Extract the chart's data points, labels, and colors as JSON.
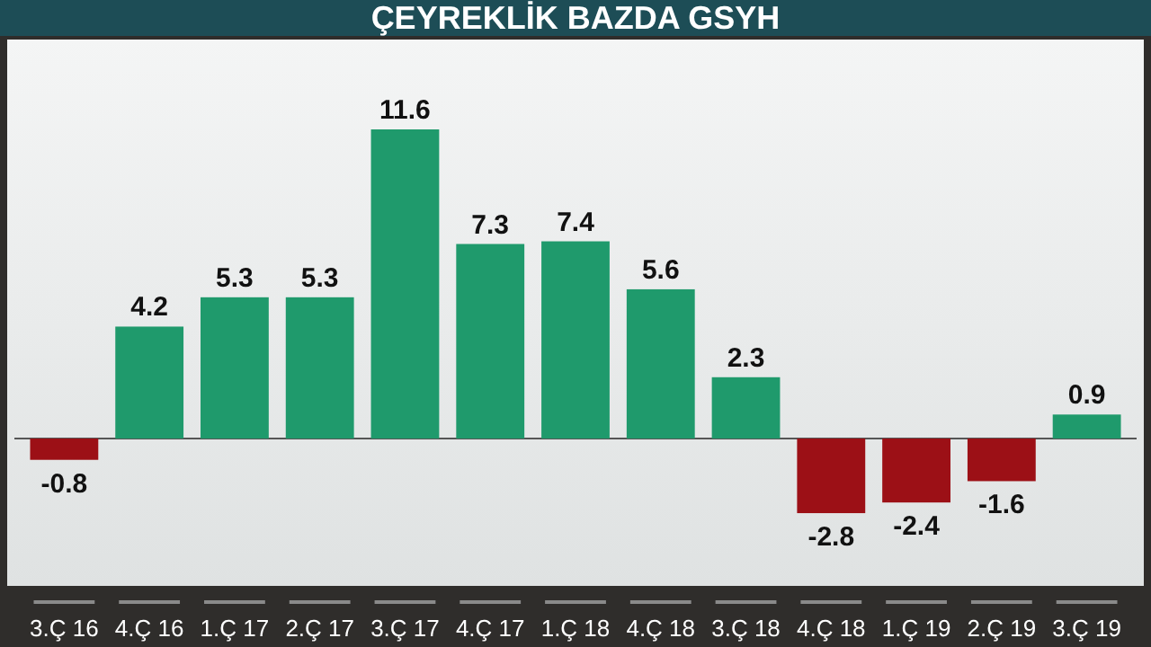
{
  "chart_data": {
    "type": "bar",
    "title": "ÇEYREKLİK BAZDA GSYH",
    "categories": [
      "3.Ç 16",
      "4.Ç 16",
      "1.Ç 17",
      "2.Ç 17",
      "3.Ç 17",
      "4.Ç 17",
      "1.Ç 18",
      "4.Ç 18",
      "3.Ç 18",
      "4.Ç 18",
      "1.Ç 19",
      "2.Ç 19",
      "3.Ç 19"
    ],
    "values": [
      -0.8,
      4.2,
      5.3,
      5.3,
      11.6,
      7.3,
      7.4,
      5.6,
      2.3,
      -2.8,
      -2.4,
      -1.6,
      0.9
    ],
    "colors": [
      "#9c1016",
      "#1f9a6c",
      "#1f9a6c",
      "#1f9a6c",
      "#1f9a6c",
      "#1f9a6c",
      "#1f9a6c",
      "#1f9a6c",
      "#1f9a6c",
      "#9c1016",
      "#9c1016",
      "#9c1016",
      "#1f9a6c"
    ],
    "data_labels": true
  }
}
